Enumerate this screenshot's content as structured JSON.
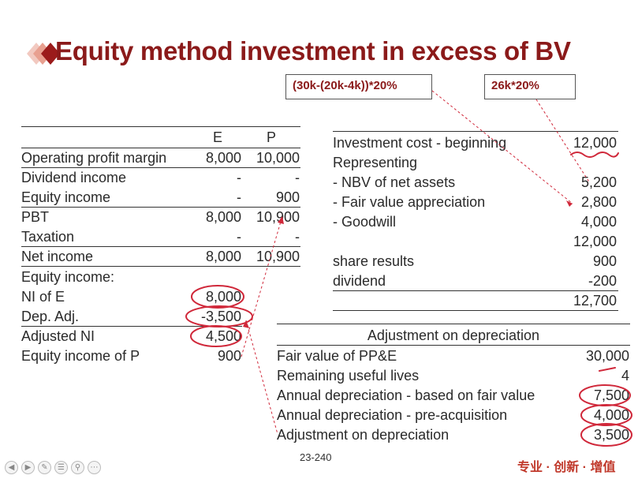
{
  "title": "Equity method investment in excess of BV",
  "notes": {
    "calc1": "(30k-(20k-4k))*20%",
    "calc2": "26k*20%"
  },
  "left_table": {
    "headers": {
      "e": "E",
      "p": "P"
    },
    "rows": [
      {
        "label": "Operating profit margin",
        "e": "8,000",
        "p": "10,000"
      },
      {
        "label": "Dividend income",
        "e": "-",
        "p": "-"
      },
      {
        "label": "Equity income",
        "e": "-",
        "p": "900"
      },
      {
        "label": "PBT",
        "e": "8,000",
        "p": "10,900"
      },
      {
        "label": "Taxation",
        "e": "-",
        "p": "-"
      },
      {
        "label": "Net income",
        "e": "8,000",
        "p": "10,900"
      }
    ],
    "equity_income": {
      "heading": "Equity income:",
      "rows": [
        {
          "label": "NI of E",
          "value": "8,000"
        },
        {
          "label": "Dep. Adj.",
          "value": "-3,500"
        },
        {
          "label": "Adjusted NI",
          "value": "4,500"
        },
        {
          "label": "Equity income of P",
          "value": "900"
        }
      ]
    }
  },
  "investment_table": {
    "rows": [
      {
        "label": "Investment cost - beginning",
        "value": "12,000"
      },
      {
        "label": "Representing",
        "value": ""
      },
      {
        "label": "- NBV of net assets",
        "value": "5,200"
      },
      {
        "label": "- Fair value appreciation",
        "value": "2,800"
      },
      {
        "label": "- Goodwill",
        "value": "4,000"
      },
      {
        "label": "",
        "value": "12,000"
      },
      {
        "label": "share results",
        "value": "900"
      },
      {
        "label": "dividend",
        "value": "-200"
      },
      {
        "label": "",
        "value": "12,700"
      }
    ]
  },
  "depreciation_table": {
    "heading": "Adjustment on depreciation",
    "rows": [
      {
        "label": "Fair value of PP&E",
        "value": "30,000"
      },
      {
        "label": "Remaining useful lives",
        "value": "4"
      },
      {
        "label": "Annual depreciation - based on fair value",
        "value": "7,500"
      },
      {
        "label": "Annual depreciation - pre-acquisition",
        "value": "4,000"
      },
      {
        "label": "Adjustment on depreciation",
        "value": "3,500"
      }
    ]
  },
  "footer": {
    "page": "23-240",
    "motto": "专业 · 创新 · 增值"
  },
  "toolbar": {
    "buttons": [
      "prev-icon",
      "next-icon",
      "pen-icon",
      "menu-icon",
      "zoom-icon",
      "more-icon"
    ],
    "accent": "#c0392b",
    "title_color": "#8b1a1a"
  }
}
